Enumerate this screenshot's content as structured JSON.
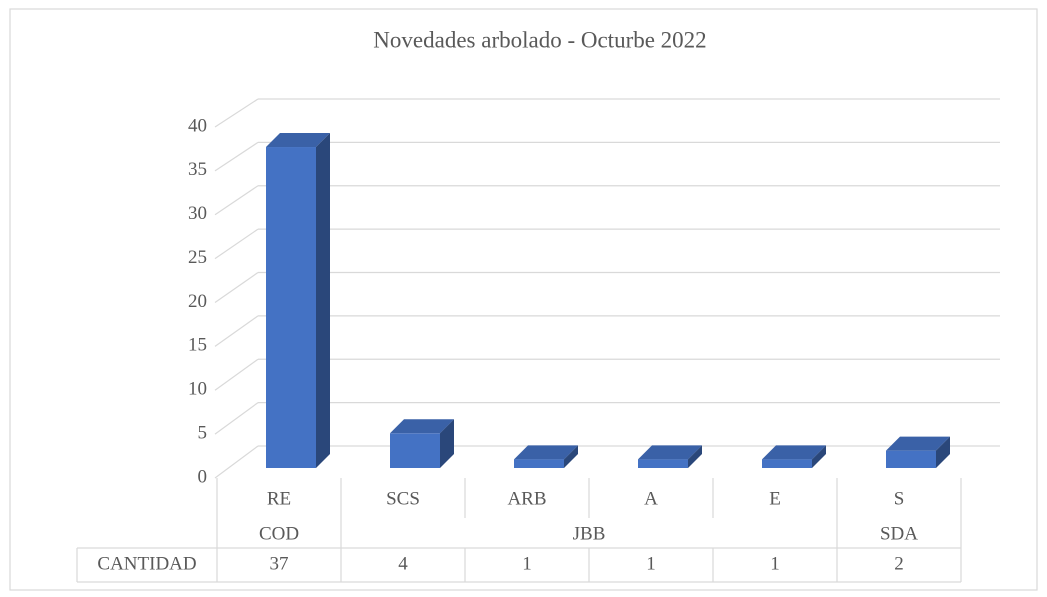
{
  "chart_data": {
    "type": "bar",
    "title": "Novedades arbolado - Octurbe 2022",
    "categories": [
      "RE",
      "SCS",
      "ARB",
      "A",
      "E",
      "S"
    ],
    "groups": [
      {
        "label": "COD",
        "size": 1
      },
      {
        "label": "JBB",
        "size": 4
      },
      {
        "label": "SDA",
        "size": 1
      }
    ],
    "series": [
      {
        "name": "CANTIDAD",
        "color": "#4472c4",
        "values": [
          37,
          4,
          1,
          1,
          1,
          2
        ]
      }
    ],
    "ylim": [
      0,
      40
    ],
    "yticks": [
      0,
      5,
      10,
      15,
      20,
      25,
      30,
      35,
      40
    ],
    "grid": true
  }
}
